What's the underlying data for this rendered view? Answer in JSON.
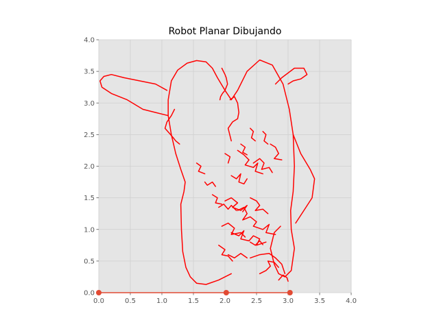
{
  "chart_data": {
    "type": "line",
    "title": "Robot Planar Dibujando",
    "xlabel": "",
    "ylabel": "",
    "xlim": [
      0,
      4
    ],
    "ylim": [
      0,
      4
    ],
    "x_ticks": [
      "0.0",
      "0.5",
      "1.0",
      "1.5",
      "2.0",
      "2.5",
      "3.0",
      "3.5",
      "4.0"
    ],
    "y_ticks": [
      "0.0",
      "0.5",
      "1.0",
      "1.5",
      "2.0",
      "2.5",
      "3.0",
      "3.5",
      "4.0"
    ],
    "grid": true,
    "background_color": "#e5e5e5",
    "grid_color": "#cfcfcf",
    "stroke_color": "#ff0000",
    "marker_color": "#e24a33",
    "markers": [
      {
        "x": 0.0,
        "y": 0.0
      },
      {
        "x": 2.02,
        "y": 0.0
      },
      {
        "x": 3.03,
        "y": 0.0
      }
    ],
    "robot_links": [
      {
        "x": [
          0.0,
          2.02
        ],
        "y": [
          0.0,
          0.0
        ]
      },
      {
        "x": [
          2.02,
          3.03
        ],
        "y": [
          0.0,
          0.0
        ]
      }
    ],
    "series": [
      {
        "x": [
          2.1,
          1.9,
          1.7,
          1.55,
          1.45,
          1.38,
          1.33,
          1.31,
          1.3,
          1.35,
          1.37,
          1.3,
          1.22,
          1.15,
          1.1
        ],
        "y": [
          0.3,
          0.2,
          0.13,
          0.15,
          0.25,
          0.4,
          0.65,
          1.0,
          1.4,
          1.6,
          1.75,
          1.95,
          2.2,
          2.5,
          2.8
        ]
      },
      {
        "x": [
          1.1,
          1.1,
          1.15,
          1.25,
          1.4,
          1.55,
          1.7,
          1.8,
          1.88,
          2.0,
          2.1,
          2.2,
          2.35,
          2.55,
          2.75,
          2.92,
          3.02,
          3.08,
          3.1,
          3.08,
          3.04,
          3.05
        ],
        "y": [
          2.8,
          3.05,
          3.35,
          3.52,
          3.63,
          3.67,
          3.65,
          3.55,
          3.4,
          3.2,
          3.05,
          3.2,
          3.5,
          3.68,
          3.6,
          3.3,
          2.9,
          2.5,
          2.0,
          1.6,
          1.3,
          1.0
        ]
      },
      {
        "x": [
          3.05,
          3.1,
          3.05,
          2.95,
          2.85,
          2.78,
          2.72,
          2.78,
          2.88
        ],
        "y": [
          1.0,
          0.7,
          0.35,
          0.25,
          0.3,
          0.45,
          0.7,
          0.95,
          1.05
        ]
      },
      {
        "x": [
          1.95,
          2.0,
          2.02,
          2.04,
          2.0,
          1.96,
          1.93,
          1.92
        ],
        "y": [
          3.55,
          3.45,
          3.4,
          3.3,
          3.2,
          3.15,
          3.1,
          3.05
        ]
      },
      {
        "x": [
          2.08,
          2.15,
          2.2,
          2.22,
          2.2,
          2.12,
          2.05,
          2.1
        ],
        "y": [
          3.05,
          3.1,
          3.0,
          2.85,
          2.75,
          2.7,
          2.6,
          2.4
        ]
      },
      {
        "x": [
          1.2,
          1.15,
          1.08,
          1.05,
          1.12,
          1.18,
          1.22,
          1.28
        ],
        "y": [
          2.9,
          2.8,
          2.7,
          2.6,
          2.52,
          2.45,
          2.4,
          2.35
        ]
      },
      {
        "x": [
          1.1,
          0.9,
          0.7,
          0.45,
          0.2,
          0.05,
          0.02,
          0.08,
          0.2,
          0.4,
          0.65,
          0.9,
          1.08
        ],
        "y": [
          2.8,
          2.85,
          2.9,
          3.05,
          3.15,
          3.25,
          3.35,
          3.42,
          3.45,
          3.4,
          3.35,
          3.3,
          3.2
        ]
      },
      {
        "x": [
          2.8,
          2.9,
          3.1,
          3.25,
          3.3,
          3.2,
          3.08,
          3.0
        ],
        "y": [
          3.3,
          3.4,
          3.55,
          3.55,
          3.45,
          3.38,
          3.35,
          3.3
        ]
      },
      {
        "x": [
          3.08,
          3.2,
          3.35,
          3.42,
          3.38,
          3.25,
          3.12
        ],
        "y": [
          2.5,
          2.2,
          1.95,
          1.8,
          1.5,
          1.3,
          1.1
        ]
      },
      {
        "x": [
          2.4,
          2.55,
          2.7,
          2.8,
          2.9,
          2.95
        ],
        "y": [
          0.55,
          0.6,
          0.62,
          0.55,
          0.45,
          0.3
        ]
      },
      {
        "x": [
          2.2,
          2.3,
          2.35,
          2.28,
          2.4,
          2.5,
          2.45,
          2.6,
          2.7,
          2.65,
          2.8
        ],
        "y": [
          1.3,
          1.35,
          1.25,
          1.15,
          1.2,
          1.12,
          1.05,
          1.0,
          1.08,
          0.95,
          0.92
        ]
      },
      {
        "x": [
          2.1,
          2.22,
          2.3,
          2.25,
          2.38,
          2.45,
          2.55,
          2.5,
          2.65
        ],
        "y": [
          0.95,
          0.9,
          0.98,
          0.85,
          0.82,
          0.9,
          0.85,
          0.75,
          0.8
        ]
      },
      {
        "x": [
          1.95,
          2.05,
          2.15,
          2.1,
          2.25,
          2.32
        ],
        "y": [
          1.05,
          1.1,
          1.02,
          0.92,
          0.95,
          0.88
        ]
      },
      {
        "x": [
          2.0,
          2.1,
          2.2,
          2.12,
          2.25,
          2.35,
          2.28
        ],
        "y": [
          1.45,
          1.5,
          1.42,
          1.35,
          1.3,
          1.38,
          1.28
        ]
      },
      {
        "x": [
          2.4,
          2.5,
          2.55,
          2.48,
          2.6,
          2.68
        ],
        "y": [
          1.5,
          1.45,
          1.38,
          1.3,
          1.32,
          1.25
        ]
      },
      {
        "x": [
          1.9,
          2.0,
          1.95,
          2.05,
          2.12
        ],
        "y": [
          0.75,
          0.68,
          0.6,
          0.58,
          0.5
        ]
      },
      {
        "x": [
          2.05,
          2.15,
          2.25,
          2.35
        ],
        "y": [
          0.6,
          0.55,
          0.62,
          0.55
        ]
      },
      {
        "x": [
          2.55,
          2.65,
          2.72,
          2.68,
          2.78,
          2.85
        ],
        "y": [
          0.3,
          0.35,
          0.42,
          0.5,
          0.48,
          0.4
        ]
      },
      {
        "x": [
          2.2,
          2.3,
          2.38,
          2.32,
          2.45,
          2.52,
          2.48,
          2.6
        ],
        "y": [
          2.25,
          2.18,
          2.1,
          2.02,
          1.98,
          2.05,
          1.92,
          1.88
        ]
      },
      {
        "x": [
          2.45,
          2.55,
          2.62,
          2.58,
          2.7,
          2.75
        ],
        "y": [
          2.05,
          2.12,
          2.05,
          1.95,
          1.98,
          1.9
        ]
      },
      {
        "x": [
          2.1,
          2.18,
          2.25,
          2.22,
          2.3,
          2.35
        ],
        "y": [
          1.85,
          1.8,
          1.88,
          1.75,
          1.72,
          1.8
        ]
      },
      {
        "x": [
          2.72,
          2.8,
          2.85,
          2.78,
          2.9
        ],
        "y": [
          2.35,
          2.3,
          2.2,
          2.12,
          2.1
        ]
      },
      {
        "x": [
          1.68,
          1.72,
          1.8,
          1.85
        ],
        "y": [
          1.75,
          1.7,
          1.75,
          1.68
        ]
      },
      {
        "x": [
          2.4,
          2.45,
          2.42,
          2.48
        ],
        "y": [
          2.6,
          2.55,
          2.45,
          2.4
        ]
      },
      {
        "x": [
          2.6,
          2.65,
          2.62,
          2.68
        ],
        "y": [
          2.55,
          2.5,
          2.4,
          2.35
        ]
      },
      {
        "x": [
          2.25,
          2.32,
          2.28,
          2.35
        ],
        "y": [
          2.35,
          2.3,
          2.22,
          2.18
        ]
      },
      {
        "x": [
          2.0,
          2.08,
          2.05
        ],
        "y": [
          2.2,
          2.15,
          2.05
        ]
      },
      {
        "x": [
          1.9,
          1.98,
          2.05,
          2.1,
          2.18
        ],
        "y": [
          1.35,
          1.4,
          1.32,
          1.38,
          1.3
        ]
      },
      {
        "x": [
          2.4,
          2.48,
          2.55,
          2.6
        ],
        "y": [
          0.8,
          0.75,
          0.82,
          0.76
        ]
      },
      {
        "x": [
          2.85,
          2.92,
          2.98,
          3.0
        ],
        "y": [
          0.2,
          0.28,
          0.24,
          0.18
        ]
      },
      {
        "x": [
          1.55,
          1.62,
          1.58,
          1.68
        ],
        "y": [
          2.05,
          2.0,
          1.92,
          1.88
        ]
      },
      {
        "x": [
          1.8,
          1.88,
          1.85,
          1.95
        ],
        "y": [
          1.55,
          1.5,
          1.42,
          1.4
        ]
      }
    ]
  }
}
